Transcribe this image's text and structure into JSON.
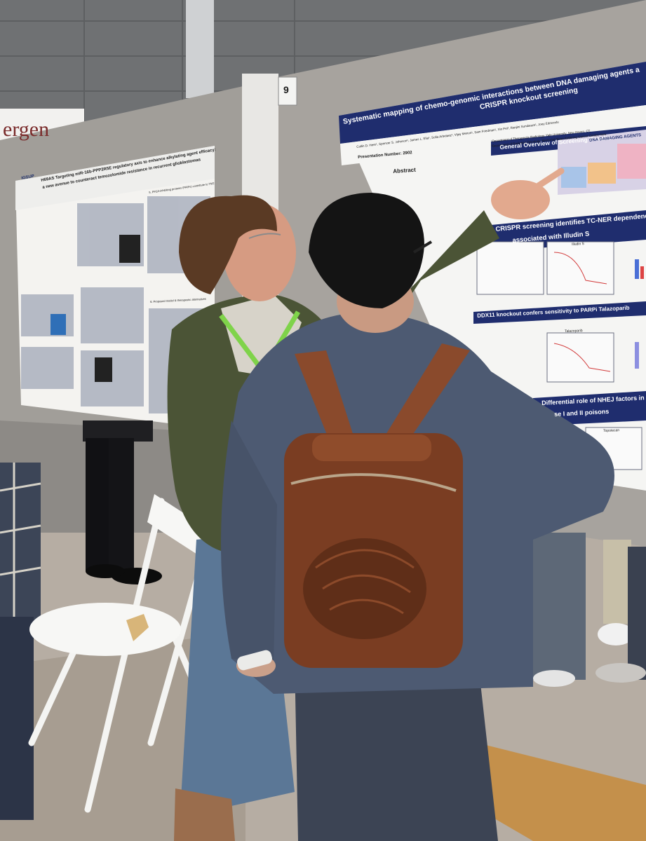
{
  "signage": {
    "booth_banner_fragment": "ergen",
    "board_number": "9"
  },
  "poster_right": {
    "title_line1": "Systematic mapping of chemo-genomic interactions between DNA damaging agents a",
    "title_line2": "CRISPR knockout screening",
    "authors": "Collin D. Heer¹, Spencer S. Johnson¹, James L. Elia¹, Sofia Arbelaez¹, Vijay Menon¹, Sam Friedman¹, Xin Pei², Ranjini Sundaram¹, Joey Edmonds",
    "affiliation1": "¹Department of Therapeutic Radiology, Yale University, New Haven, CT,",
    "affiliation2": "²Department of Radiation Oncology, Memorial Sloan Kettering Cancer Center, New",
    "presentation_number": "Presentation Number: 2902",
    "section_abstract": "Abstract",
    "section_overview": "General Overview of Screening Results",
    "section_tc_ner": "CRISPR screening identifies TC-NER dependencies",
    "section_tc_ner_sub": "associated with Illudin S",
    "section_ddx11": "DDX11 knockout confers sensitivity to PARPi Talazoparib",
    "section_nhej": "Differential role of NHEJ factors in",
    "section_nhej_sub": "se I and II poisons",
    "dda_header": "DNA DAMAGING AGENTS",
    "panel_illudin": "Illudin S",
    "panel_talazoparib": "Talazoparib",
    "panel_topotecan": "Topotecan"
  },
  "poster_left": {
    "logo": "IGSUP",
    "title_line1": "H69AS Targeting miR-16b-PPP2R5E regulatory axis to enhance alkylating agent efficacy:",
    "title_line2": "a new avenue to counteract temozolomide resistance in recurrent glioblastomas",
    "section_5": "5. PP2A-inhibiting proteins (PAIPs) contribute to TMZ",
    "section_6": "6. Proposed model & therapeutic alternatives"
  },
  "colors": {
    "poster_navy": "#1f2d6e",
    "board_gray": "#a19e99",
    "backpack_brown": "#7a3d22",
    "jacket_green": "#4b5436",
    "lanyard": "#7fd34a"
  }
}
